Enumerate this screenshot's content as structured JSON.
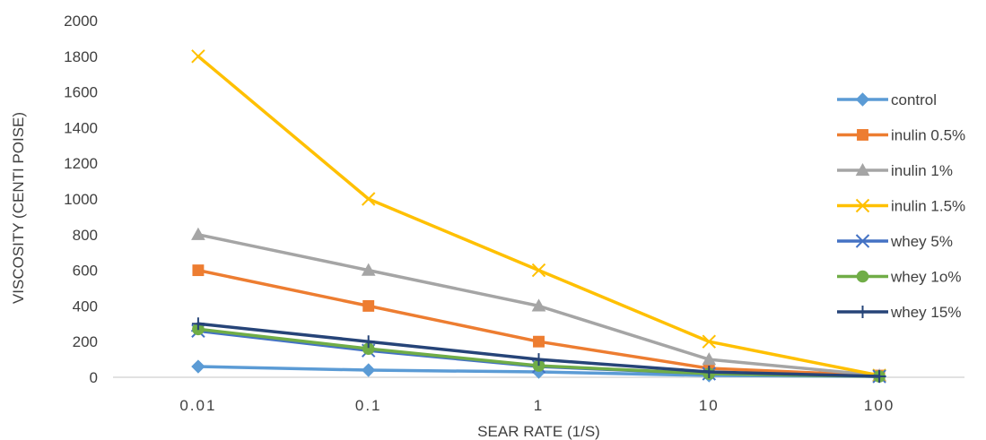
{
  "chart_data": {
    "type": "line",
    "title": "",
    "xlabel": "SEAR RATE (1/S)",
    "ylabel": "VISCOSITY (CENTI POISE)",
    "categories": [
      "0.01",
      "0.1",
      "1",
      "10",
      "100"
    ],
    "ylim": [
      0,
      2000
    ],
    "ytick_step": 200,
    "yticks": [
      "0",
      "200",
      "400",
      "600",
      "800",
      "1000",
      "1200",
      "1400",
      "1600",
      "1800",
      "2000"
    ],
    "grid": false,
    "legend_position": "right",
    "series": [
      {
        "name": "control",
        "color": "#5B9BD5",
        "marker": "diamond",
        "values": [
          60,
          40,
          30,
          10,
          5
        ]
      },
      {
        "name": "inulin 0.5%",
        "color": "#ED7D31",
        "marker": "square",
        "values": [
          600,
          400,
          200,
          50,
          10
        ]
      },
      {
        "name": "inulin 1%",
        "color": "#A5A5A5",
        "marker": "triangle",
        "values": [
          800,
          600,
          400,
          100,
          10
        ]
      },
      {
        "name": "inulin 1.5%",
        "color": "#FFC000",
        "marker": "x",
        "values": [
          1800,
          1000,
          600,
          200,
          10
        ]
      },
      {
        "name": "whey 5%",
        "color": "#4472C4",
        "marker": "star",
        "values": [
          260,
          150,
          60,
          20,
          5
        ]
      },
      {
        "name": "whey 1o%",
        "color": "#70AD47",
        "marker": "circle",
        "values": [
          270,
          160,
          65,
          20,
          5
        ]
      },
      {
        "name": "whey 15%",
        "color": "#264478",
        "marker": "plus",
        "values": [
          300,
          200,
          100,
          30,
          5
        ]
      }
    ]
  }
}
